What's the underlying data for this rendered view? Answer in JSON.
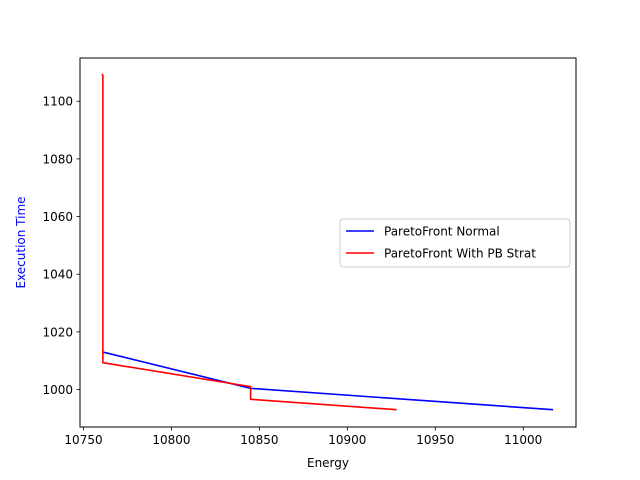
{
  "chart_data": {
    "type": "line",
    "title": "",
    "xlabel": "Energy",
    "ylabel": "Execution Time",
    "xlabel_color": "#000000",
    "ylabel_color": "#0000ff",
    "xlim": [
      10748,
      11030
    ],
    "ylim": [
      987,
      1115
    ],
    "xticks": [
      10750,
      10800,
      10850,
      10900,
      10950,
      11000
    ],
    "yticks": [
      1000,
      1020,
      1040,
      1060,
      1080,
      1100
    ],
    "grid": false,
    "legend_placement": "center-right",
    "series": [
      {
        "name": "ParetoFront Normal",
        "color": "#0000ff",
        "x": [
          10761,
          10845,
          11017
        ],
        "y": [
          1013,
          1000.4,
          993
        ]
      },
      {
        "name": "ParetoFront With PB Strat",
        "color": "#ff0000",
        "x": [
          10760.5,
          10761,
          10761,
          10845,
          10845,
          10928
        ],
        "y": [
          1109.5,
          1109,
          1009.3,
          1001,
          996.6,
          993
        ]
      }
    ]
  }
}
